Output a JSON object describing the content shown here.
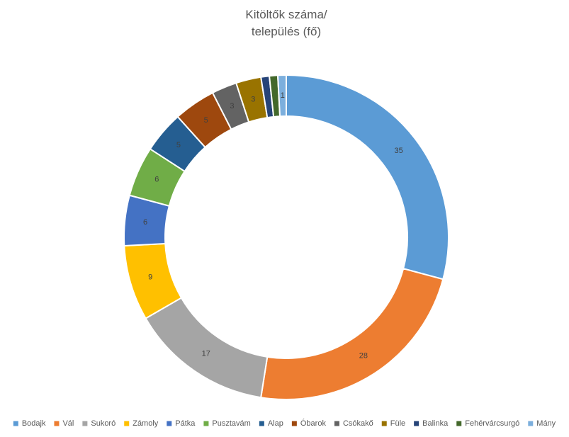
{
  "chart_data": {
    "type": "pie",
    "variant": "doughnut",
    "title": [
      "Kitöltők száma/",
      "település (fő)"
    ],
    "categories": [
      "Bodajk",
      "Vál",
      "Sukoró",
      "Zámoly",
      "Pátka",
      "Pusztavám",
      "Alap",
      "Óbarok",
      "Csókakő",
      "Füle",
      "Balinka",
      "Fehérvárcsurgó",
      "Mány"
    ],
    "values": [
      35,
      28,
      17,
      9,
      6,
      6,
      5,
      5,
      3,
      3,
      1,
      1,
      1
    ],
    "data_labels": [
      "35",
      "28",
      "17",
      "9",
      "6",
      "6",
      "5",
      "5",
      "3",
      "3",
      "",
      "",
      "1"
    ],
    "colors": [
      "#5B9BD5",
      "#ED7D31",
      "#A5A5A5",
      "#FFC000",
      "#4472C4",
      "#70AD47",
      "#255E91",
      "#9E480E",
      "#636363",
      "#997300",
      "#264478",
      "#43682B",
      "#7CAFDD"
    ],
    "legend_position": "bottom"
  }
}
